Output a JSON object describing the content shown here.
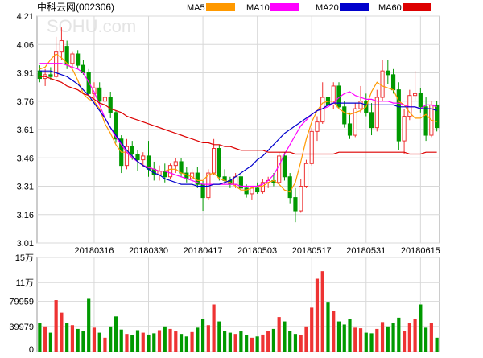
{
  "header": {
    "title": "中科云网(002306)",
    "legend": [
      {
        "label": "MA5",
        "color": "#ff9900"
      },
      {
        "label": "MA10",
        "color": "#ff00ff"
      },
      {
        "label": "MA20",
        "color": "#0000cc"
      },
      {
        "label": "MA60",
        "color": "#dd0000"
      }
    ]
  },
  "watermark": "SOHU.com",
  "colors": {
    "up": "#ee3333",
    "down": "#009900",
    "grid": "#d8d8d8",
    "axis": "#888888"
  },
  "chart_data": {
    "type": "candlestick",
    "price_axis": {
      "ylim": [
        3.01,
        4.21
      ],
      "ticks": [
        "4.21",
        "4.06",
        "3.91",
        "3.76",
        "3.61",
        "3.46",
        "3.31",
        "3.16",
        "3.01"
      ]
    },
    "volume_axis": {
      "ylim": [
        0,
        150000
      ],
      "ticks": [
        {
          "label": "15万",
          "value": 150000
        },
        {
          "label": "11万",
          "value": 110000
        },
        {
          "label": "79959",
          "value": 79959
        },
        {
          "label": "39979",
          "value": 39979
        },
        {
          "label": "0",
          "value": 0
        }
      ]
    },
    "date_labels": [
      {
        "label": "20180316",
        "index": 10
      },
      {
        "label": "20180330",
        "index": 20
      },
      {
        "label": "20180417",
        "index": 30
      },
      {
        "label": "20180503",
        "index": 40
      },
      {
        "label": "20180517",
        "index": 50
      },
      {
        "label": "20180531",
        "index": 60
      },
      {
        "label": "20180615",
        "index": 70
      }
    ],
    "ohlc": [
      [
        3.92,
        3.95,
        3.86,
        3.88
      ],
      [
        3.88,
        3.93,
        3.84,
        3.9
      ],
      [
        3.9,
        3.94,
        3.87,
        3.89
      ],
      [
        3.89,
        4.1,
        3.88,
        4.02
      ],
      [
        4.02,
        4.15,
        3.98,
        4.08
      ],
      [
        4.05,
        4.08,
        3.93,
        3.96
      ],
      [
        3.96,
        4.02,
        3.94,
        4.01
      ],
      [
        4.01,
        4.03,
        3.93,
        3.95
      ],
      [
        3.95,
        3.98,
        3.9,
        3.91
      ],
      [
        3.91,
        3.93,
        3.78,
        3.8
      ],
      [
        3.8,
        3.86,
        3.77,
        3.83
      ],
      [
        3.83,
        3.86,
        3.74,
        3.76
      ],
      [
        3.76,
        3.8,
        3.72,
        3.78
      ],
      [
        3.78,
        3.81,
        3.67,
        3.7
      ],
      [
        3.7,
        3.71,
        3.54,
        3.56
      ],
      [
        3.56,
        3.58,
        3.38,
        3.42
      ],
      [
        3.42,
        3.56,
        3.4,
        3.52
      ],
      [
        3.52,
        3.55,
        3.45,
        3.48
      ],
      [
        3.48,
        3.5,
        3.39,
        3.45
      ],
      [
        3.45,
        3.49,
        3.41,
        3.47
      ],
      [
        3.47,
        3.55,
        3.36,
        3.4
      ],
      [
        3.4,
        3.44,
        3.34,
        3.37
      ],
      [
        3.37,
        3.42,
        3.34,
        3.39
      ],
      [
        3.39,
        3.43,
        3.33,
        3.36
      ],
      [
        3.36,
        3.43,
        3.35,
        3.42
      ],
      [
        3.42,
        3.46,
        3.38,
        3.44
      ],
      [
        3.44,
        3.46,
        3.36,
        3.38
      ],
      [
        3.38,
        3.41,
        3.33,
        3.35
      ],
      [
        3.35,
        3.4,
        3.31,
        3.38
      ],
      [
        3.38,
        3.41,
        3.3,
        3.32
      ],
      [
        3.32,
        3.34,
        3.18,
        3.25
      ],
      [
        3.25,
        3.4,
        3.24,
        3.38
      ],
      [
        3.38,
        3.56,
        3.37,
        3.51
      ],
      [
        3.51,
        3.53,
        3.34,
        3.36
      ],
      [
        3.36,
        3.4,
        3.32,
        3.34
      ],
      [
        3.34,
        3.36,
        3.3,
        3.32
      ],
      [
        3.32,
        3.38,
        3.3,
        3.36
      ],
      [
        3.36,
        3.38,
        3.28,
        3.3
      ],
      [
        3.3,
        3.32,
        3.25,
        3.27
      ],
      [
        3.27,
        3.31,
        3.24,
        3.3
      ],
      [
        3.3,
        3.33,
        3.27,
        3.28
      ],
      [
        3.28,
        3.35,
        3.27,
        3.33
      ],
      [
        3.33,
        3.36,
        3.3,
        3.34
      ],
      [
        3.34,
        3.38,
        3.31,
        3.33
      ],
      [
        3.33,
        3.49,
        3.32,
        3.47
      ],
      [
        3.47,
        3.49,
        3.34,
        3.36
      ],
      [
        3.36,
        3.38,
        3.22,
        3.25
      ],
      [
        3.25,
        3.3,
        3.12,
        3.18
      ],
      [
        3.18,
        3.35,
        3.17,
        3.31
      ],
      [
        3.31,
        3.45,
        3.3,
        3.43
      ],
      [
        3.43,
        3.62,
        3.42,
        3.6
      ],
      [
        3.6,
        3.68,
        3.55,
        3.65
      ],
      [
        3.65,
        3.86,
        3.64,
        3.78
      ],
      [
        3.78,
        3.82,
        3.7,
        3.74
      ],
      [
        3.74,
        3.86,
        3.72,
        3.84
      ],
      [
        3.84,
        3.86,
        3.72,
        3.73
      ],
      [
        3.73,
        3.76,
        3.62,
        3.64
      ],
      [
        3.64,
        3.7,
        3.56,
        3.58
      ],
      [
        3.58,
        3.75,
        3.57,
        3.72
      ],
      [
        3.72,
        3.84,
        3.7,
        3.76
      ],
      [
        3.76,
        3.8,
        3.68,
        3.7
      ],
      [
        3.7,
        3.75,
        3.58,
        3.62
      ],
      [
        3.62,
        3.82,
        3.6,
        3.78
      ],
      [
        3.78,
        3.98,
        3.76,
        3.92
      ],
      [
        3.92,
        3.98,
        3.85,
        3.9
      ],
      [
        3.9,
        3.93,
        3.8,
        3.82
      ],
      [
        3.82,
        3.86,
        3.5,
        3.55
      ],
      [
        3.55,
        3.72,
        3.48,
        3.68
      ],
      [
        3.68,
        3.82,
        3.66,
        3.79
      ],
      [
        3.79,
        3.92,
        3.76,
        3.8
      ],
      [
        3.8,
        3.83,
        3.7,
        3.73
      ],
      [
        3.73,
        3.78,
        3.55,
        3.58
      ],
      [
        3.58,
        3.76,
        3.57,
        3.74
      ],
      [
        3.74,
        3.76,
        3.6,
        3.62
      ]
    ],
    "volume": [
      46000,
      40000,
      30000,
      82000,
      62000,
      46000,
      42000,
      36000,
      33000,
      84000,
      38000,
      30000,
      22000,
      40000,
      56000,
      35000,
      28000,
      26000,
      34000,
      30000,
      27000,
      29000,
      34000,
      40000,
      36000,
      32000,
      28000,
      24000,
      31000,
      38000,
      52000,
      42000,
      75000,
      48000,
      33000,
      30000,
      28000,
      32000,
      26000,
      22000,
      24000,
      27000,
      33000,
      36000,
      55000,
      48000,
      33000,
      28000,
      26000,
      40000,
      70000,
      116000,
      128000,
      78000,
      65000,
      48000,
      43000,
      52000,
      38000,
      37000,
      30000,
      29000,
      36000,
      47000,
      40000,
      45000,
      54000,
      33000,
      45000,
      52000,
      75000,
      38000,
      46000,
      22000
    ],
    "ma": {
      "MA5": [
        3.93,
        3.94,
        3.98,
        4.01,
        3.99,
        3.96,
        3.93,
        3.87,
        3.8,
        3.77,
        3.76,
        3.72,
        3.64,
        3.59,
        3.53,
        3.49,
        3.49,
        3.47,
        3.44,
        3.42,
        3.41,
        3.4,
        3.39,
        3.39,
        3.4,
        3.4,
        3.38,
        3.37,
        3.36,
        3.34,
        3.34,
        3.37,
        3.38,
        3.35,
        3.34,
        3.33,
        3.31,
        3.29,
        3.29,
        3.3,
        3.31,
        3.31,
        3.33,
        3.34,
        3.32,
        3.29,
        3.28,
        3.33,
        3.44,
        3.56,
        3.65,
        3.71,
        3.75,
        3.76,
        3.76,
        3.72,
        3.7,
        3.69,
        3.7,
        3.71,
        3.73,
        3.81,
        3.86,
        3.84,
        3.83,
        3.82,
        3.76,
        3.74,
        3.7,
        3.67,
        3.67,
        3.69,
        3.66,
        3.65
      ],
      "MA10": [
        3.96,
        3.96,
        3.96,
        3.96,
        3.96,
        3.95,
        3.94,
        3.93,
        3.91,
        3.86,
        3.81,
        3.74,
        3.67,
        3.62,
        3.57,
        3.53,
        3.49,
        3.46,
        3.44,
        3.42,
        3.41,
        3.4,
        3.39,
        3.39,
        3.38,
        3.37,
        3.36,
        3.35,
        3.34,
        3.33,
        3.32,
        3.32,
        3.32,
        3.32,
        3.32,
        3.32,
        3.32,
        3.31,
        3.31,
        3.31,
        3.31,
        3.32,
        3.34,
        3.37,
        3.42,
        3.48,
        3.53,
        3.58,
        3.63,
        3.66,
        3.69,
        3.71,
        3.72,
        3.73,
        3.75,
        3.78,
        3.8,
        3.81,
        3.79,
        3.78,
        3.77,
        3.77,
        3.76,
        3.76,
        3.76,
        3.75,
        3.75,
        3.74,
        3.73,
        3.73,
        3.72,
        3.74,
        3.74,
        3.73
      ],
      "MA20": [
        3.92,
        3.92,
        3.92,
        3.91,
        3.9,
        3.89,
        3.87,
        3.85,
        3.82,
        3.79,
        3.75,
        3.71,
        3.67,
        3.62,
        3.58,
        3.54,
        3.5,
        3.47,
        3.44,
        3.42,
        3.4,
        3.38,
        3.37,
        3.35,
        3.34,
        3.33,
        3.32,
        3.32,
        3.32,
        3.31,
        3.31,
        3.31,
        3.32,
        3.32,
        3.33,
        3.34,
        3.36,
        3.38,
        3.4,
        3.42,
        3.45,
        3.47,
        3.5,
        3.53,
        3.56,
        3.59,
        3.61,
        3.63,
        3.65,
        3.67,
        3.69,
        3.71,
        3.72,
        3.74,
        3.75,
        3.75,
        3.75,
        3.75,
        3.75,
        3.75,
        3.74,
        3.74,
        3.74,
        3.74,
        3.74,
        3.74,
        3.73,
        3.73,
        3.73,
        3.73,
        3.72,
        3.72,
        3.72,
        3.71
      ],
      "MA60": [
        3.89,
        3.89,
        3.88,
        3.87,
        3.86,
        3.84,
        3.83,
        3.82,
        3.8,
        3.79,
        3.77,
        3.75,
        3.74,
        3.72,
        3.71,
        3.7,
        3.68,
        3.67,
        3.66,
        3.65,
        3.64,
        3.63,
        3.62,
        3.61,
        3.6,
        3.59,
        3.58,
        3.57,
        3.56,
        3.55,
        3.54,
        3.54,
        3.53,
        3.53,
        3.52,
        3.52,
        3.51,
        3.5,
        3.5,
        3.5,
        3.5,
        3.5,
        3.49,
        3.49,
        3.49,
        3.49,
        3.49,
        3.48,
        3.48,
        3.48,
        3.48,
        3.48,
        3.48,
        3.48,
        3.48,
        3.49,
        3.49,
        3.49,
        3.49,
        3.49,
        3.49,
        3.49,
        3.49,
        3.49,
        3.49,
        3.49,
        3.49,
        3.49,
        3.48,
        3.48,
        3.48,
        3.49,
        3.49,
        3.49
      ]
    }
  }
}
